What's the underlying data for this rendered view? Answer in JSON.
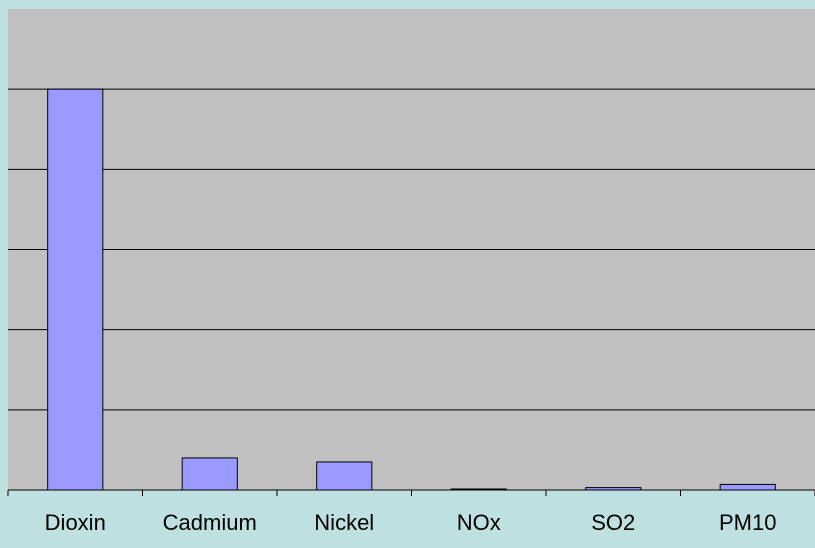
{
  "chart_data": {
    "type": "bar",
    "categories": [
      "Dioxin",
      "Cadmium",
      "Nickel",
      "NOx",
      "SO2",
      "PM10"
    ],
    "values": [
      5.0,
      0.4,
      0.35,
      0.01,
      0.03,
      0.07
    ],
    "ylim": [
      0,
      6
    ],
    "y_gridlines": [
      1,
      2,
      3,
      4,
      5
    ],
    "y_tick_labels_shown": false,
    "grid": true,
    "legend": "none",
    "title": "",
    "xlabel": "",
    "ylabel": "",
    "colors": {
      "background": "#bfe0e0",
      "plot_area": "#c0c0c0",
      "bar_fill": "#9999ff",
      "bar_stroke": "#000000",
      "gridline": "#000000"
    }
  }
}
